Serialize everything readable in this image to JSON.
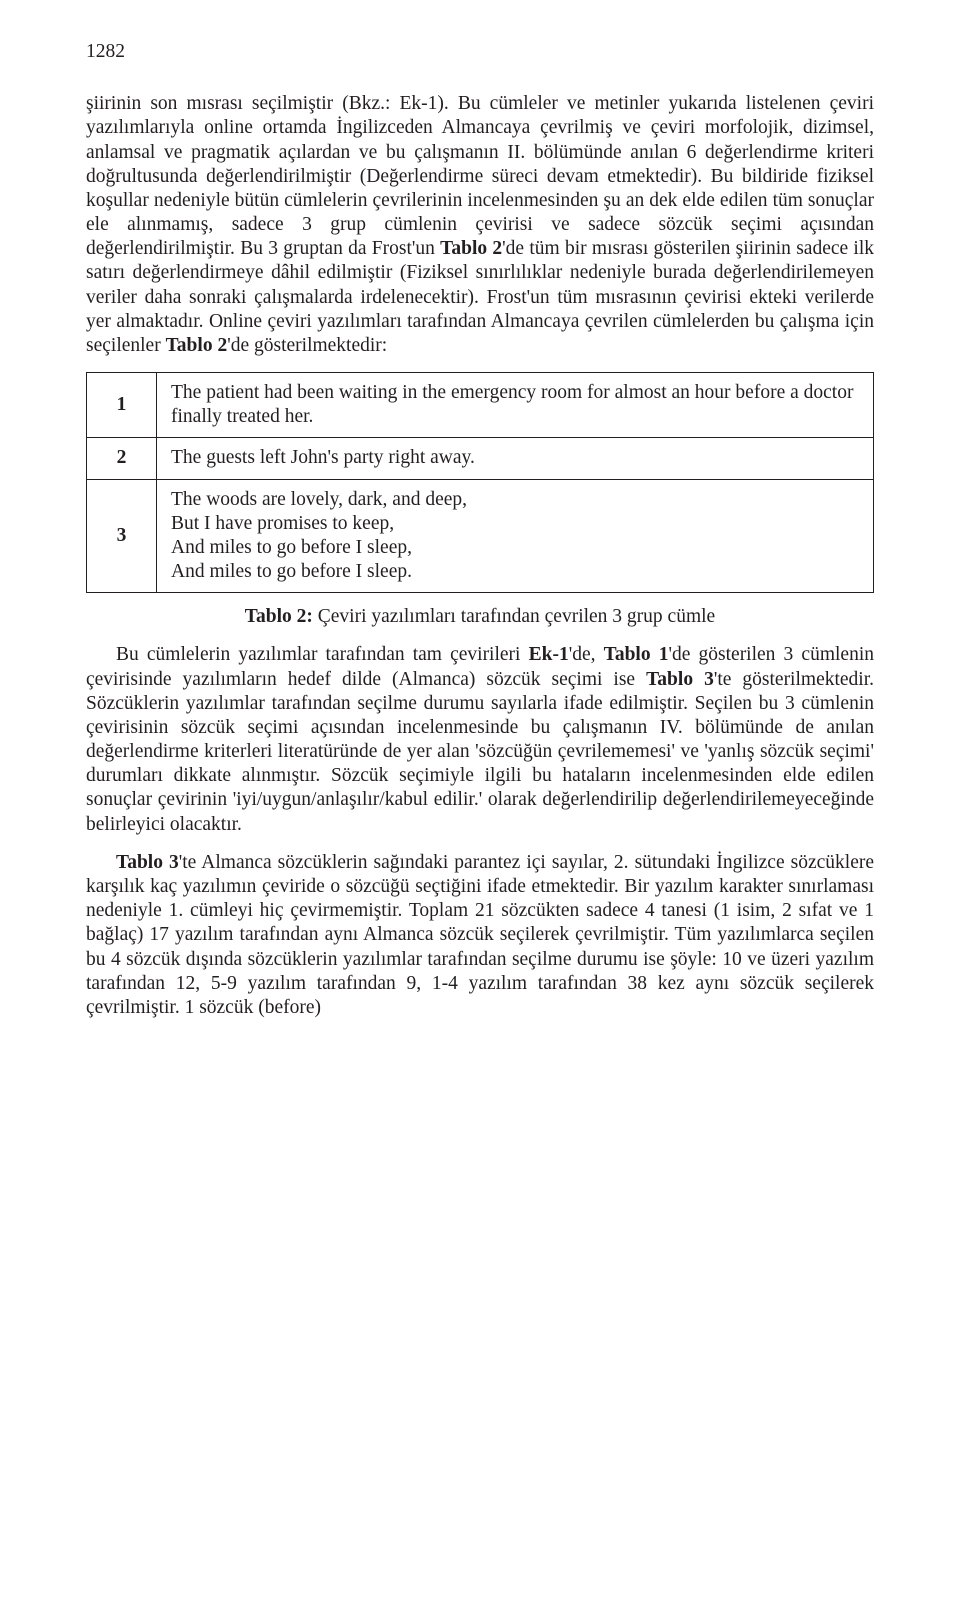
{
  "page_number": "1282",
  "p1_a": "şiirinin son mısrası seçilmiştir (Bkz.: Ek-1). Bu cümleler ve metinler yukarıda listelenen çeviri yazılımlarıyla online ortamda İngilizceden Almancaya çevrilmiş ve çeviri morfolojik, dizimsel, anlamsal ve pragmatik açılardan ve bu çalışmanın II. bölümünde anılan 6 değerlendirme kriteri doğrultusunda değerlendirilmiştir (Değerlendirme süreci devam etmektedir). Bu bildiride fiziksel koşullar nedeniyle bütün cümlelerin çevrilerinin incelenmesinden şu an dek elde edilen tüm sonuçlar ele alınmamış, sadece 3 grup cümlenin çevirisi ve sadece sözcük seçimi açısından değerlendirilmiştir. Bu 3 gruptan da Frost'un ",
  "p1_b1": "Tablo 2",
  "p1_c": "'de tüm bir mısrası gösterilen şiirinin sadece ilk satırı değerlendirmeye dâhil edilmiştir (Fiziksel sınırlılıklar nedeniyle burada değerlendirilemeyen veriler daha sonraki çalışmalarda irdelenecektir). Frost'un tüm mısrasının çevirisi ekteki verilerde yer almaktadır. Online çeviri yazılımları tarafından Almancaya çevrilen cümlelerden bu çalışma için seçilenler ",
  "p1_b2": "Tablo 2",
  "p1_d": "'de gösterilmektedir:",
  "table2": {
    "rows": [
      {
        "num": "1",
        "text": "The patient had been waiting in the emergency room for almost an hour before a doctor finally treated her."
      },
      {
        "num": "2",
        "text": "The guests left John's party right away."
      },
      {
        "num": "3",
        "lines": [
          "The woods are lovely, dark, and deep,",
          "But I have promises to keep,",
          "And miles to go before I sleep,",
          "And miles to go before I sleep."
        ]
      }
    ]
  },
  "caption2_b": "Tablo 2: ",
  "caption2_t": "Çeviri yazılımları tarafından çevrilen 3 grup cümle",
  "p2_a": "Bu cümlelerin yazılımlar tarafından tam çevirileri ",
  "p2_b1": "Ek-1",
  "p2_c": "'de, ",
  "p2_b2": "Tablo 1",
  "p2_d": "'de gösterilen 3 cümlenin çevirisinde yazılımların hedef dilde (Almanca) sözcük seçimi ise ",
  "p2_b3": "Tablo 3",
  "p2_e": "'te gösterilmektedir. Sözcüklerin yazılımlar tarafından seçilme durumu sayılarla ifade edilmiştir. Seçilen bu 3 cümlenin çevirisinin sözcük seçimi açısından incelenmesinde bu çalışmanın IV. bölümünde de anılan değerlendirme kriterleri literatüründe de yer alan 'sözcüğün çevrilememesi' ve 'yanlış sözcük seçimi' durumları dikkate alınmıştır. Sözcük seçimiyle ilgili bu hataların incelenmesinden elde edilen sonuçlar çevirinin 'iyi/uygun/anlaşılır/kabul edilir.' olarak değerlendirilip değerlendirilemeyeceğinde belirleyici olacaktır.",
  "p3_b": "Tablo 3",
  "p3_t": "'te Almanca sözcüklerin sağındaki parantez içi sayılar, 2. sütundaki İngilizce sözcüklere karşılık kaç yazılımın çeviride o sözcüğü seçtiğini ifade etmektedir. Bir yazılım karakter sınırlaması nedeniyle 1. cümleyi hiç çevirmemiştir. Toplam 21 sözcükten sadece 4 tanesi (1 isim, 2 sıfat ve 1 bağlaç) 17 yazılım tarafından aynı Almanca sözcük seçilerek çevrilmiştir. Tüm yazılımlarca seçilen bu 4 sözcük dışında sözcüklerin yazılımlar tarafından seçilme durumu ise şöyle: 10 ve üzeri yazılım tarafından 12, 5-9 yazılım tarafından 9, 1-4 yazılım tarafından 38 kez aynı sözcük seçilerek çevrilmiştir. 1 sözcük (before)"
}
